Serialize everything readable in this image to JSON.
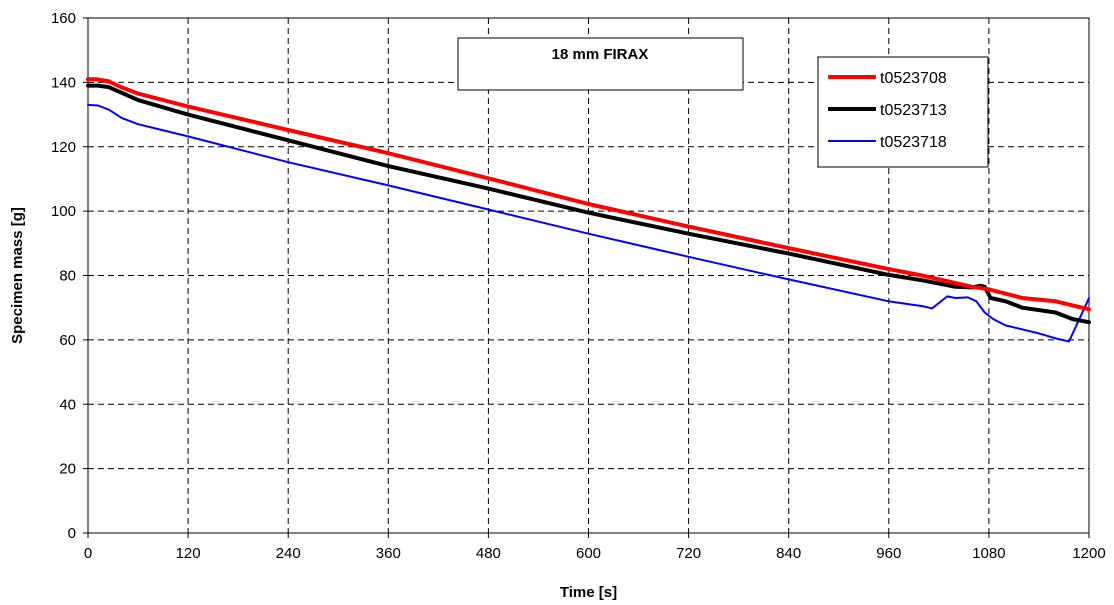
{
  "chart_data": {
    "type": "line",
    "title": "18 mm FIRAX",
    "xlabel": "Time [s]",
    "ylabel": "Specimen mass [g]",
    "xlim": [
      0,
      1200
    ],
    "ylim": [
      0,
      160
    ],
    "xticks": [
      "0",
      "120",
      "240",
      "360",
      "480",
      "600",
      "720",
      "840",
      "960",
      "1080",
      "1200"
    ],
    "yticks": [
      "0",
      "20",
      "40",
      "60",
      "80",
      "100",
      "120",
      "140",
      "160"
    ],
    "grid": true,
    "grid_style": "dashed",
    "legend_position": "top-right",
    "series": [
      {
        "name": "t0523708",
        "color": "#ff0000",
        "line_width": "thick",
        "points": [
          [
            0,
            141
          ],
          [
            10,
            141
          ],
          [
            25,
            140.3
          ],
          [
            40,
            138.5
          ],
          [
            60,
            136.5
          ],
          [
            120,
            132.5
          ],
          [
            240,
            125.2
          ],
          [
            360,
            118
          ],
          [
            480,
            110.2
          ],
          [
            600,
            102.2
          ],
          [
            720,
            95.2
          ],
          [
            840,
            88.5
          ],
          [
            960,
            82
          ],
          [
            1000,
            80
          ],
          [
            1060,
            76.5
          ],
          [
            1080,
            75.7
          ],
          [
            1120,
            73
          ],
          [
            1160,
            72
          ],
          [
            1200,
            69.5
          ]
        ]
      },
      {
        "name": "t0523713",
        "color": "#000000",
        "line_width": "thick",
        "points": [
          [
            0,
            139
          ],
          [
            12,
            139
          ],
          [
            25,
            138.5
          ],
          [
            40,
            136.8
          ],
          [
            60,
            134.5
          ],
          [
            120,
            130
          ],
          [
            240,
            122
          ],
          [
            360,
            114
          ],
          [
            480,
            107
          ],
          [
            600,
            99.5
          ],
          [
            720,
            93
          ],
          [
            840,
            86.8
          ],
          [
            960,
            80.2
          ],
          [
            1000,
            78.5
          ],
          [
            1040,
            76.5
          ],
          [
            1060,
            76.3
          ],
          [
            1070,
            76.8
          ],
          [
            1075,
            76.5
          ],
          [
            1082,
            73
          ],
          [
            1100,
            72
          ],
          [
            1120,
            70
          ],
          [
            1160,
            68.5
          ],
          [
            1180,
            66.5
          ],
          [
            1200,
            65.5
          ]
        ]
      },
      {
        "name": "t0523718",
        "color": "#0000ff",
        "line_width": "thin",
        "points": [
          [
            0,
            133
          ],
          [
            12,
            132.8
          ],
          [
            25,
            131.5
          ],
          [
            40,
            129
          ],
          [
            60,
            127
          ],
          [
            120,
            123.2
          ],
          [
            240,
            115.2
          ],
          [
            360,
            108
          ],
          [
            480,
            100.5
          ],
          [
            600,
            93
          ],
          [
            720,
            85.8
          ],
          [
            840,
            78.8
          ],
          [
            960,
            72
          ],
          [
            1000,
            70.5
          ],
          [
            1012,
            69.8
          ],
          [
            1030,
            73.5
          ],
          [
            1040,
            73
          ],
          [
            1055,
            73.2
          ],
          [
            1065,
            72
          ],
          [
            1075,
            68.5
          ],
          [
            1085,
            66.5
          ],
          [
            1100,
            64.5
          ],
          [
            1140,
            62
          ],
          [
            1160,
            60.5
          ],
          [
            1176,
            59.5
          ],
          [
            1200,
            73
          ]
        ]
      }
    ]
  }
}
